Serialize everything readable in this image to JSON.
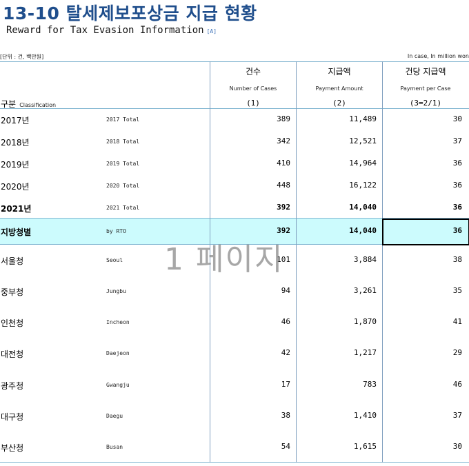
{
  "title": "13-10 탈세제보포상금 지급 현황",
  "subtitle": "Reward for Tax Evasion Information",
  "subtitle_badge": "[A]",
  "unit_left": "[단위 : 건, 백만원]",
  "unit_right": "In case, In million won",
  "header": {
    "classification_ko": "구분",
    "classification_en": "Classification",
    "columns": [
      {
        "ko": "건수",
        "en": "Number of Cases",
        "num": "(1)"
      },
      {
        "ko": "지급액",
        "en": "Payment Amount",
        "num": "(2)"
      },
      {
        "ko": "건당 지급액",
        "en": "Payment per Case",
        "num": "(3=2/1)"
      }
    ]
  },
  "rows": [
    {
      "ko": "2017년",
      "en": "2017 Total",
      "cases": "389",
      "amount": "11,489",
      "per": "30"
    },
    {
      "ko": "2018년",
      "en": "2018 Total",
      "cases": "342",
      "amount": "12,521",
      "per": "37"
    },
    {
      "ko": "2019년",
      "en": "2019 Total",
      "cases": "410",
      "amount": "14,964",
      "per": "36"
    },
    {
      "ko": "2020년",
      "en": "2020 Total",
      "cases": "448",
      "amount": "16,122",
      "per": "36"
    },
    {
      "ko": "2021년",
      "en": "2021 Total",
      "cases": "392",
      "amount": "14,040",
      "per": "36"
    },
    {
      "ko": "지방청별",
      "en": "by RTO",
      "cases": "392",
      "amount": "14,040",
      "per": "36"
    },
    {
      "ko": "서울청",
      "en": "Seoul",
      "cases": "101",
      "amount": "3,884",
      "per": "38"
    },
    {
      "ko": "중부청",
      "en": "Jungbu",
      "cases": "94",
      "amount": "3,261",
      "per": "35"
    },
    {
      "ko": "인천청",
      "en": "Incheon",
      "cases": "46",
      "amount": "1,870",
      "per": "41"
    },
    {
      "ko": "대전청",
      "en": "Daejeon",
      "cases": "42",
      "amount": "1,217",
      "per": "29"
    },
    {
      "ko": "광주청",
      "en": "Gwangju",
      "cases": "17",
      "amount": "783",
      "per": "46"
    },
    {
      "ko": "대구청",
      "en": "Daegu",
      "cases": "38",
      "amount": "1,410",
      "per": "37"
    },
    {
      "ko": "부산청",
      "en": "Busan",
      "cases": "54",
      "amount": "1,615",
      "per": "30"
    }
  ],
  "watermark": "1 페이지"
}
